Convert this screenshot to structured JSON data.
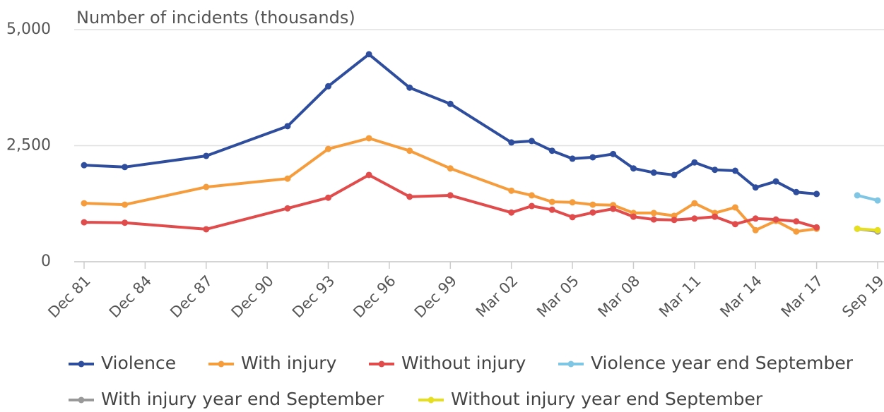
{
  "chart_data": {
    "type": "line",
    "y_label": "Number of incidents (thousands)",
    "categories": [
      "Dec 81",
      null,
      null,
      "Dec 84",
      null,
      null,
      "Dec 87",
      null,
      null,
      "Dec 90",
      null,
      null,
      "Dec 93",
      null,
      null,
      "Dec 96",
      null,
      null,
      "Dec 99",
      null,
      null,
      "Mar 02",
      null,
      null,
      "Mar 05",
      null,
      null,
      "Mar 08",
      null,
      null,
      "Mar 11",
      null,
      null,
      "Mar 14",
      null,
      null,
      "Mar 17",
      null,
      null,
      "Sep 19"
    ],
    "series": [
      {
        "name": "Violence",
        "color": "#2e4d9c",
        "values": [
          2080,
          null,
          2040,
          null,
          null,
          null,
          2280,
          null,
          null,
          null,
          2920,
          null,
          3780,
          null,
          4470,
          null,
          3750,
          null,
          3400,
          null,
          null,
          2570,
          2600,
          2390,
          2220,
          2250,
          2320,
          2010,
          1920,
          1870,
          2140,
          1980,
          1960,
          1600,
          1730,
          1500,
          1460,
          null,
          null,
          null
        ]
      },
      {
        "name": "With injury",
        "color": "#f59d3d",
        "values": [
          1260,
          null,
          1230,
          null,
          null,
          null,
          1610,
          null,
          null,
          null,
          1790,
          null,
          2430,
          null,
          2660,
          null,
          2390,
          null,
          2010,
          null,
          null,
          1530,
          1430,
          1290,
          1280,
          1230,
          1220,
          1050,
          1050,
          990,
          1260,
          1050,
          1170,
          680,
          880,
          650,
          710,
          null,
          null,
          null
        ]
      },
      {
        "name": "Without injury",
        "color": "#e04b4b",
        "values": [
          850,
          null,
          840,
          null,
          null,
          null,
          700,
          null,
          null,
          null,
          1150,
          null,
          1380,
          null,
          1870,
          null,
          1400,
          null,
          1430,
          null,
          null,
          1060,
          1200,
          1120,
          960,
          1060,
          1140,
          970,
          910,
          900,
          930,
          970,
          810,
          930,
          910,
          870,
          740,
          null,
          null,
          null
        ]
      },
      {
        "name": "Violence year end September",
        "color": "#7fc6e4",
        "values": [
          null,
          null,
          null,
          null,
          null,
          null,
          null,
          null,
          null,
          null,
          null,
          null,
          null,
          null,
          null,
          null,
          null,
          null,
          null,
          null,
          null,
          null,
          null,
          null,
          null,
          null,
          null,
          null,
          null,
          null,
          null,
          null,
          null,
          null,
          null,
          null,
          null,
          null,
          1430,
          1320
        ]
      },
      {
        "name": "With injury year end September",
        "color": "#999999",
        "values": [
          null,
          null,
          null,
          null,
          null,
          null,
          null,
          null,
          null,
          null,
          null,
          null,
          null,
          null,
          null,
          null,
          null,
          null,
          null,
          null,
          null,
          null,
          null,
          null,
          null,
          null,
          null,
          null,
          null,
          null,
          null,
          null,
          null,
          null,
          null,
          null,
          null,
          null,
          710,
          650
        ]
      },
      {
        "name": "Without injury year end September",
        "color": "#e6df1f",
        "values": [
          null,
          null,
          null,
          null,
          null,
          null,
          null,
          null,
          null,
          null,
          null,
          null,
          null,
          null,
          null,
          null,
          null,
          null,
          null,
          null,
          null,
          null,
          null,
          null,
          null,
          null,
          null,
          null,
          null,
          null,
          null,
          null,
          null,
          null,
          null,
          null,
          null,
          null,
          710,
          680
        ]
      }
    ],
    "ylim": [
      0,
      5000
    ],
    "yticks": [
      0,
      {
        "value": 2500,
        "label": "2,500"
      },
      {
        "value": 5000,
        "label": "5,000"
      }
    ],
    "grid": true,
    "connect_nulls": true,
    "legend": "bottom"
  }
}
